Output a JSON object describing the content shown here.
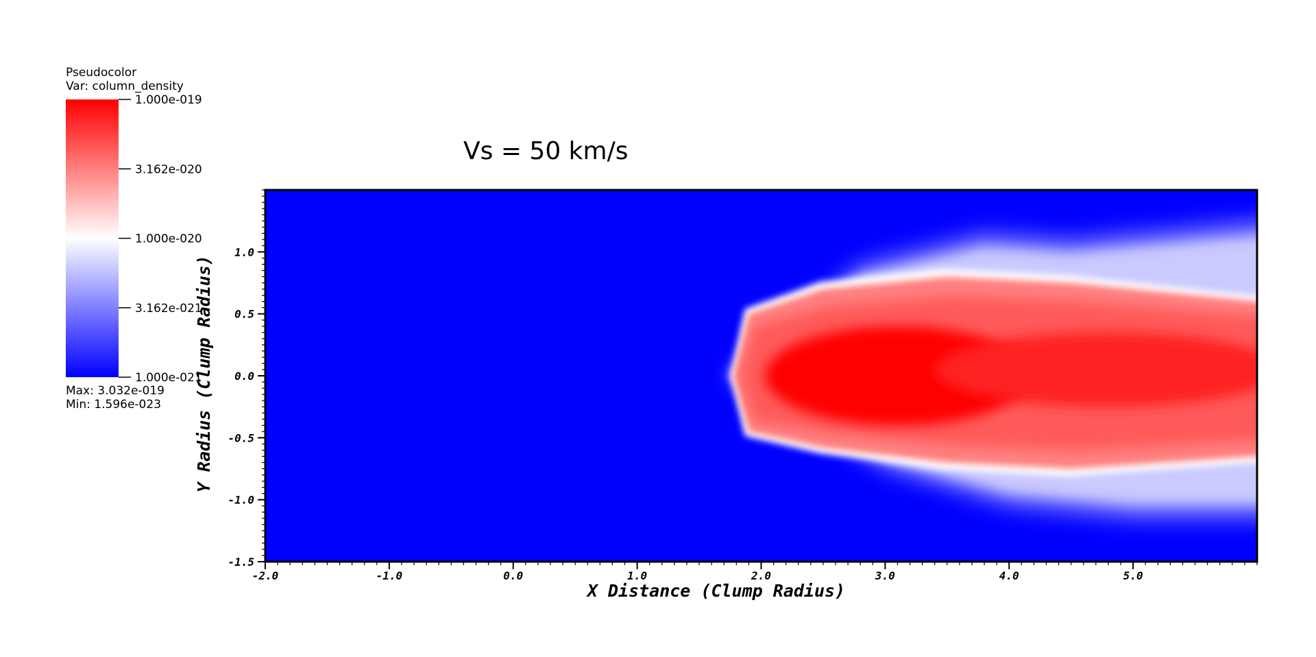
{
  "legend": {
    "plot_type": "Pseudocolor",
    "var_label": "Var: column_density",
    "ticks": [
      "1.000e-019",
      "3.162e-020",
      "1.000e-020",
      "3.162e-021",
      "1.000e-021"
    ],
    "max_label": "Max:  3.032e-019",
    "min_label": "Min:  1.596e-023",
    "colors": {
      "high": "#ff0000",
      "mid": "#ffffff",
      "low": "#0000ff"
    },
    "scale": "log"
  },
  "chart_data": {
    "type": "heatmap",
    "title": "Vs = 50 km/s",
    "xlabel": "X Distance (Clump Radius)",
    "ylabel": "Y Radius (Clump Radius)",
    "xlim": [
      -2.0,
      6.0
    ],
    "ylim": [
      -1.5,
      1.5
    ],
    "x_ticks": [
      "-2.0",
      "-1.0",
      "0.0",
      "1.0",
      "2.0",
      "3.0",
      "4.0",
      "5.0"
    ],
    "y_ticks": [
      "-1.5",
      "-1.0",
      "-0.5",
      "0.0",
      "0.5",
      "1.0"
    ],
    "x_tick_values": [
      -2.0,
      -1.0,
      0.0,
      1.0,
      2.0,
      3.0,
      4.0,
      5.0
    ],
    "y_tick_values": [
      -1.5,
      -1.0,
      -0.5,
      0.0,
      0.5,
      1.0
    ],
    "background_value": "1.596e-023",
    "structure": {
      "description_free": true,
      "head_x": 1.78,
      "tail_x": 6.0,
      "core_x": [
        2.2,
        4.0
      ],
      "upper_edge_y": [
        [
          1.78,
          0.0
        ],
        [
          1.9,
          0.5
        ],
        [
          2.5,
          0.7
        ],
        [
          3.5,
          0.8
        ],
        [
          4.5,
          0.75
        ],
        [
          6.0,
          0.6
        ]
      ],
      "lower_edge_y": [
        [
          1.78,
          0.0
        ],
        [
          1.9,
          -0.45
        ],
        [
          2.5,
          -0.58
        ],
        [
          3.5,
          -0.7
        ],
        [
          4.5,
          -0.75
        ],
        [
          6.0,
          -0.65
        ]
      ],
      "diffuse_upper_y": [
        [
          2.8,
          0.9
        ],
        [
          3.8,
          1.15
        ],
        [
          4.5,
          1.1
        ],
        [
          6.0,
          1.25
        ]
      ],
      "diffuse_lower_y": [
        [
          3.0,
          -0.75
        ],
        [
          4.0,
          -1.05
        ],
        [
          5.0,
          -1.15
        ],
        [
          6.0,
          -1.15
        ]
      ]
    }
  }
}
